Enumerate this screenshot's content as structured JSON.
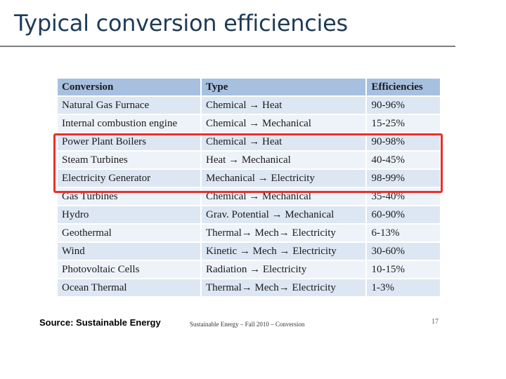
{
  "title": "Typical conversion efficiencies",
  "table": {
    "headers": [
      "Conversion",
      "Type",
      "Efficiencies"
    ],
    "rows": [
      [
        "Natural Gas Furnace",
        "Chemical → Heat",
        "90-96%"
      ],
      [
        "Internal combustion engine",
        "Chemical → Mechanical",
        "15-25%"
      ],
      [
        "Power Plant Boilers",
        "Chemical → Heat",
        "90-98%"
      ],
      [
        "Steam Turbines",
        "Heat → Mechanical",
        "40-45%"
      ],
      [
        "Electricity Generator",
        "Mechanical → Electricity",
        "98-99%"
      ],
      [
        "Gas Turbines",
        "Chemical → Mechanical",
        "35-40%"
      ],
      [
        "Hydro",
        "Grav. Potential → Mechanical",
        "60-90%"
      ],
      [
        "Geothermal",
        "Thermal→ Mech→ Electricity",
        "6-13%"
      ],
      [
        "Wind",
        "Kinetic → Mech → Electricity",
        "30-60%"
      ],
      [
        "Photovoltaic Cells",
        "Radiation → Electricity",
        "10-15%"
      ],
      [
        "Ocean Thermal",
        "Thermal→ Mech→ Electricity",
        "1-3%"
      ]
    ]
  },
  "source": {
    "label": "Source:",
    "text": " Sustainable Energy"
  },
  "footer": "Sustainable Energy – Fall 2010 – Conversion",
  "page_number": "17",
  "colors": {
    "title": "#1f3b57",
    "header_bg": "#a7c0e0",
    "row_odd": "#dde7f3",
    "row_even": "#eef3f9",
    "highlight": "#e8312a"
  }
}
